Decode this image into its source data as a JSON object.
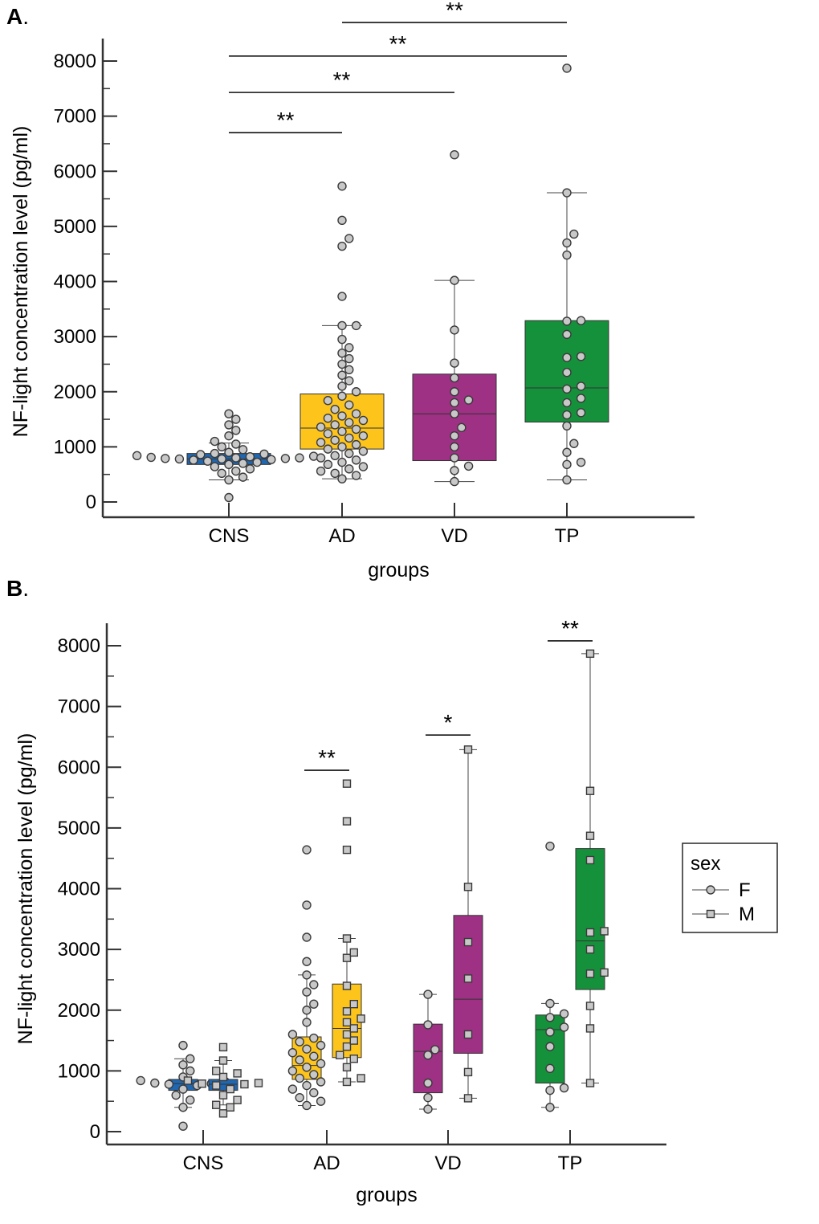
{
  "figure": {
    "panel_a_label": "A",
    "panel_b_label": "B",
    "panel_suffix": "."
  },
  "chart_data": [
    {
      "panel": "A",
      "type": "box",
      "xlabel": "groups",
      "ylabel": "NF-light concentration level (pg/ml)",
      "ylim": [
        0,
        8000
      ],
      "yticks": [
        0,
        1000,
        2000,
        3000,
        4000,
        5000,
        6000,
        7000,
        8000
      ],
      "categories": [
        "CNS",
        "AD",
        "VD",
        "TP"
      ],
      "colors": {
        "CNS": "#1f67b1",
        "AD": "#fdc41b",
        "VD": "#9e3183",
        "TP": "#16913b"
      },
      "boxes": [
        {
          "group": "CNS",
          "whisker_low": 400,
          "q1": 680,
          "median": 780,
          "q3": 880,
          "whisker_high": 1070,
          "points": [
            80,
            400,
            450,
            520,
            560,
            600,
            640,
            680,
            700,
            720,
            740,
            760,
            770,
            780,
            780,
            790,
            790,
            800,
            800,
            810,
            820,
            830,
            840,
            860,
            870,
            880,
            900,
            950,
            1000,
            1050,
            1100,
            1200,
            1300,
            1400,
            1500,
            1600
          ]
        },
        {
          "group": "AD",
          "whisker_low": 420,
          "q1": 960,
          "median": 1340,
          "q3": 1960,
          "whisker_high": 3200,
          "points": [
            420,
            480,
            520,
            560,
            600,
            640,
            680,
            720,
            760,
            800,
            840,
            880,
            920,
            960,
            1000,
            1040,
            1080,
            1120,
            1160,
            1200,
            1240,
            1280,
            1320,
            1360,
            1400,
            1440,
            1480,
            1520,
            1560,
            1600,
            1680,
            1760,
            1840,
            1920,
            2000,
            2100,
            2200,
            2300,
            2400,
            2500,
            2600,
            2700,
            2800,
            2950,
            3200,
            3200,
            3730,
            4640,
            4780,
            5110,
            5730
          ]
        },
        {
          "group": "VD",
          "whisker_low": 370,
          "q1": 750,
          "median": 1600,
          "q3": 2320,
          "whisker_high": 4020,
          "points": [
            370,
            570,
            650,
            800,
            1000,
            1200,
            1350,
            1600,
            1800,
            1850,
            2000,
            2250,
            2520,
            3120,
            4020,
            6300
          ]
        },
        {
          "group": "TP",
          "whisker_low": 400,
          "q1": 1450,
          "median": 2070,
          "q3": 3290,
          "whisker_high": 5610,
          "points": [
            400,
            680,
            720,
            900,
            1060,
            1380,
            1580,
            1620,
            1800,
            1880,
            2050,
            2100,
            2350,
            2620,
            2640,
            3040,
            3280,
            3290,
            4480,
            4700,
            4860,
            5610,
            7870
          ]
        }
      ],
      "significance": [
        {
          "from": "CNS",
          "to": "AD",
          "value": 6700,
          "label": "**"
        },
        {
          "from": "CNS",
          "to": "VD",
          "value": 7430,
          "label": "**"
        },
        {
          "from": "CNS",
          "to": "TP",
          "value": 8090,
          "label": "**"
        },
        {
          "from": "AD",
          "to": "TP",
          "value": 8700,
          "label": "**"
        }
      ]
    },
    {
      "panel": "B",
      "type": "box",
      "xlabel": "groups",
      "ylabel": "NF-light concentration level (pg/ml)",
      "ylim": [
        0,
        8000
      ],
      "yticks": [
        0,
        1000,
        2000,
        3000,
        4000,
        5000,
        6000,
        7000,
        8000
      ],
      "categories": [
        "CNS",
        "AD",
        "VD",
        "TP"
      ],
      "colors": {
        "CNS": "#1f67b1",
        "AD": "#fdc41b",
        "VD": "#9e3183",
        "TP": "#16913b"
      },
      "legend": {
        "title": "sex",
        "entries": [
          "F",
          "M"
        ],
        "markers": [
          "circle",
          "square"
        ],
        "position": "right"
      },
      "boxes": [
        {
          "group": "CNS",
          "sex": "F",
          "whisker_low": 400,
          "q1": 680,
          "median": 790,
          "q3": 860,
          "whisker_high": 1200,
          "points": [
            90,
            400,
            520,
            600,
            700,
            760,
            780,
            790,
            800,
            820,
            840,
            900,
            1000,
            1100,
            1200,
            1420
          ]
        },
        {
          "group": "CNS",
          "sex": "M",
          "whisker_low": 440,
          "q1": 680,
          "median": 780,
          "q3": 860,
          "whisker_high": 1170,
          "points": [
            300,
            400,
            440,
            520,
            600,
            700,
            760,
            780,
            790,
            800,
            840,
            900,
            960,
            1000,
            1170,
            1390
          ]
        },
        {
          "group": "AD",
          "sex": "F",
          "whisker_low": 430,
          "q1": 860,
          "median": 1090,
          "q3": 1560,
          "whisker_high": 2580,
          "points": [
            430,
            500,
            560,
            640,
            700,
            760,
            820,
            880,
            940,
            1000,
            1060,
            1120,
            1180,
            1240,
            1300,
            1360,
            1420,
            1480,
            1540,
            1600,
            1800,
            2000,
            2100,
            2300,
            2420,
            2580,
            2800,
            3200,
            3730,
            4640
          ]
        },
        {
          "group": "AD",
          "sex": "M",
          "whisker_low": 820,
          "q1": 1220,
          "median": 1700,
          "q3": 2430,
          "whisker_high": 3180,
          "points": [
            820,
            880,
            1060,
            1200,
            1260,
            1400,
            1500,
            1600,
            1700,
            1800,
            1860,
            1980,
            2100,
            2400,
            2860,
            2950,
            3180,
            4640,
            5110,
            5730
          ]
        },
        {
          "group": "VD",
          "sex": "F",
          "whisker_low": 370,
          "q1": 640,
          "median": 1320,
          "q3": 1770,
          "whisker_high": 2260,
          "points": [
            370,
            560,
            800,
            1260,
            1350,
            1760,
            2260
          ]
        },
        {
          "group": "VD",
          "sex": "M",
          "whisker_low": 550,
          "q1": 1290,
          "median": 2180,
          "q3": 3560,
          "whisker_high": 6290,
          "points": [
            550,
            980,
            1600,
            2520,
            3120,
            4030,
            6290
          ]
        },
        {
          "group": "TP",
          "sex": "F",
          "whisker_low": 400,
          "q1": 800,
          "median": 1680,
          "q3": 1920,
          "whisker_high": 2110,
          "points": [
            400,
            680,
            720,
            1040,
            1400,
            1640,
            1720,
            1880,
            1940,
            2110,
            4700
          ]
        },
        {
          "group": "TP",
          "sex": "M",
          "whisker_low": 800,
          "q1": 2340,
          "median": 3140,
          "q3": 4660,
          "whisker_high": 7870,
          "points": [
            800,
            1700,
            2070,
            2600,
            2620,
            3000,
            3280,
            3300,
            4470,
            4870,
            5610,
            7870
          ]
        }
      ],
      "significance": [
        {
          "group": "AD",
          "value": 5950,
          "label": "**"
        },
        {
          "group": "VD",
          "value": 6530,
          "label": "*"
        },
        {
          "group": "TP",
          "value": 8080,
          "label": "**"
        }
      ]
    }
  ]
}
